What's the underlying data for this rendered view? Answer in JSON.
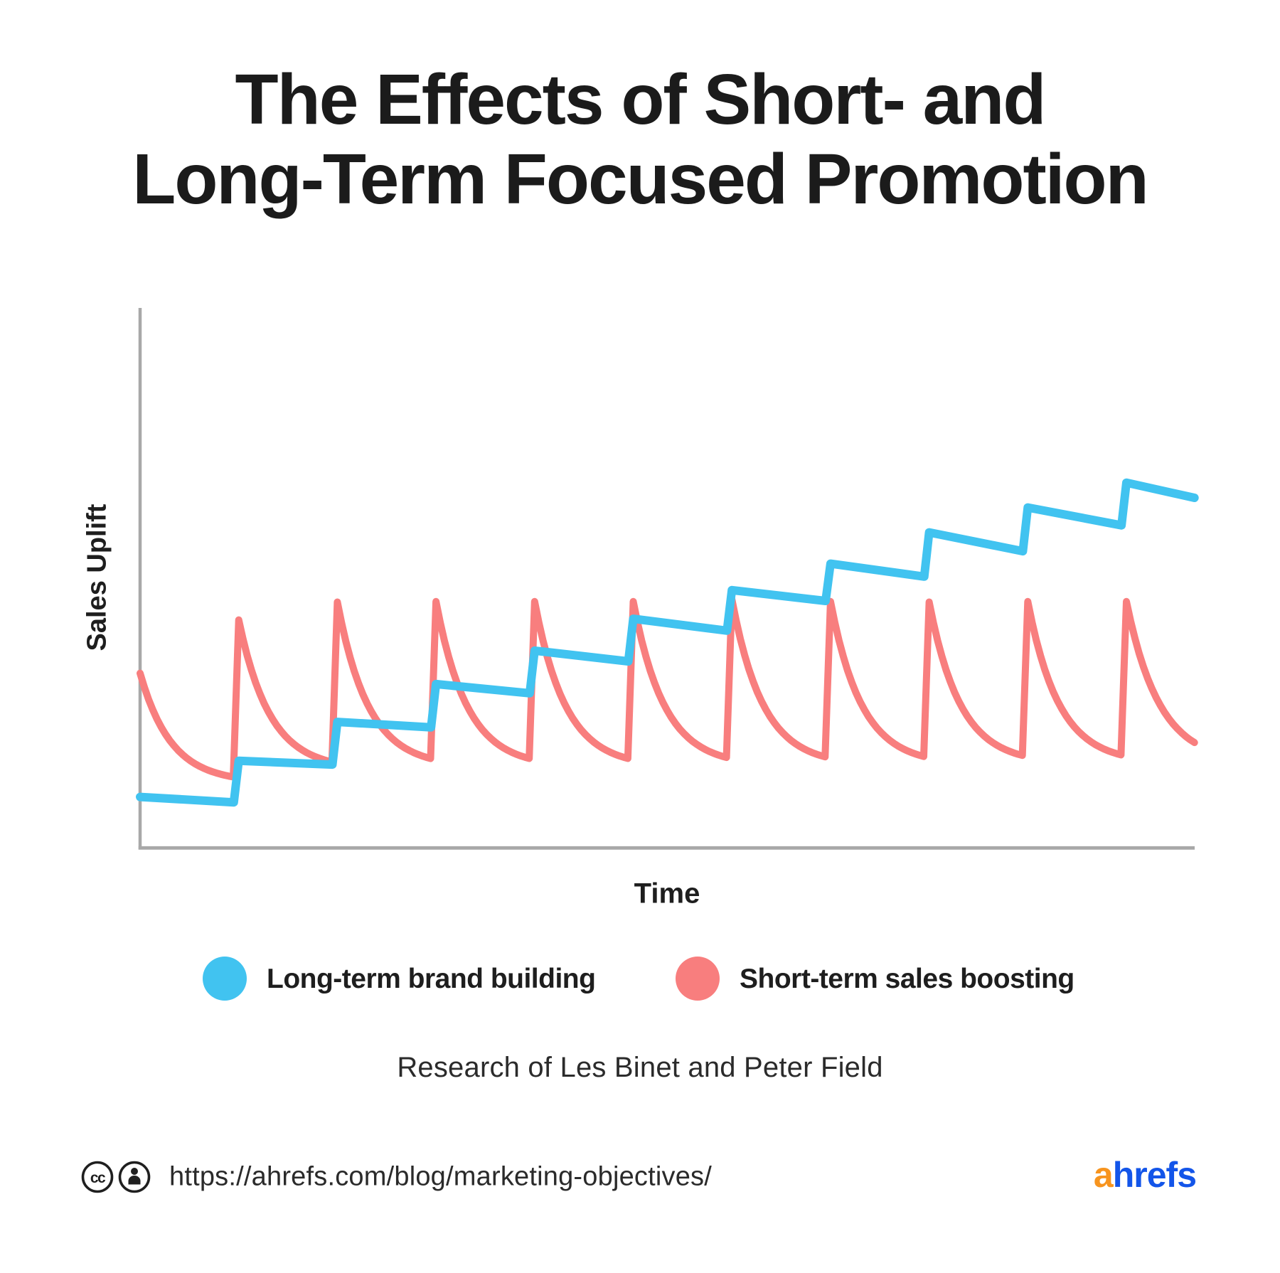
{
  "title": {
    "line1": "The Effects of Short- and",
    "line2": "Long-Term Focused Promotion"
  },
  "chart": {
    "ylabel": "Sales Uplift",
    "xlabel": "Time"
  },
  "legend": [
    {
      "label": "Long-term brand building",
      "color": "#41C3F0"
    },
    {
      "label": "Short-term sales boosting",
      "color": "#F87E7E"
    }
  ],
  "caption": "Research of Les Binet and Peter Field",
  "footer": {
    "icons": [
      "cc-icon",
      "attribution-icon"
    ],
    "url": "https://ahrefs.com/blog/marketing-objectives/",
    "logo_a": "a",
    "logo_rest": "hrefs",
    "logo_a_color": "#F7941E",
    "logo_rest_color": "#1355E9"
  },
  "colors": {
    "axis": "#A8A8A8",
    "long_term_line": "#41C3F0",
    "short_term_line": "#F87E7E",
    "text": "#1b1b1b"
  },
  "chart_data": {
    "type": "line",
    "title": "The Effects of Short- and Long-Term Focused Promotion",
    "xlabel": "Time",
    "ylabel": "Sales Uplift",
    "x_range": [
      0,
      10.69
    ],
    "y_range": [
      0,
      100
    ],
    "grid": false,
    "axis_ticks": "none",
    "legend_position": "bottom",
    "annotations": [
      "Research of Les Binet and Peter Field"
    ],
    "series": [
      {
        "name": "Long-term brand building",
        "shape": "staircase",
        "color": "#41C3F0",
        "points": [
          [
            0,
            9.4
          ],
          [
            0.95,
            8.4
          ],
          [
            1,
            16.1
          ],
          [
            1.95,
            15.4
          ],
          [
            2,
            23.3
          ],
          [
            2.95,
            22.3
          ],
          [
            3,
            30.3
          ],
          [
            3.95,
            28.6
          ],
          [
            4,
            36.5
          ],
          [
            4.95,
            34.5
          ],
          [
            5,
            42.4
          ],
          [
            5.95,
            40.2
          ],
          [
            6,
            47.7
          ],
          [
            6.95,
            45.7
          ],
          [
            7,
            52.6
          ],
          [
            7.95,
            50.2
          ],
          [
            8,
            58.4
          ],
          [
            8.95,
            54.9
          ],
          [
            9,
            63.0
          ],
          [
            9.95,
            59.7
          ],
          [
            10,
            67.6
          ],
          [
            10.69,
            64.8
          ]
        ]
      },
      {
        "name": "Short-term sales boosting",
        "shape": "sawtooth",
        "color": "#F87E7E",
        "start": [
          0,
          32.3
        ],
        "spike_times": [
          1,
          2,
          3,
          4,
          5,
          6,
          7,
          8,
          9,
          10
        ],
        "peaks": [
          42.2,
          45.5,
          45.6,
          45.6,
          45.6,
          46.0,
          45.6,
          45.5,
          45.6,
          45.6
        ],
        "troughs": [
          12.1,
          14.5,
          15.0,
          15.0,
          15.0,
          15.2,
          15.3,
          15.4,
          15.6,
          15.7
        ],
        "end": [
          10.69,
          19.4
        ],
        "end_trough": 15.7,
        "rise_dt": 0.055,
        "decay_k": 3.0
      }
    ]
  }
}
